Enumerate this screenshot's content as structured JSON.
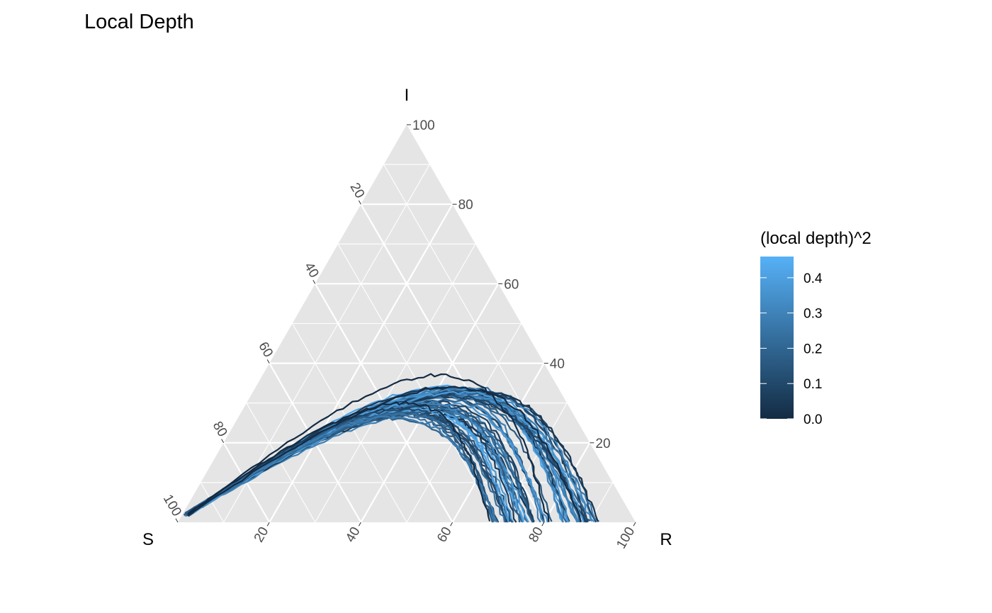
{
  "chart_data": {
    "type": "line",
    "subtype": "ternary",
    "title": "Local Depth",
    "vertices": {
      "top": "I",
      "left": "S",
      "right": "R"
    },
    "axes": {
      "I": {
        "ticks": [
          20,
          40,
          60,
          80,
          100
        ],
        "tick_labels": [
          "20",
          "40",
          "60",
          "80",
          "100"
        ],
        "side": "right"
      },
      "S": {
        "ticks": [
          20,
          40,
          60,
          80,
          100
        ],
        "tick_labels": [
          "20",
          "40",
          "60",
          "80",
          "100"
        ],
        "side": "left"
      },
      "R": {
        "ticks": [
          20,
          40,
          60,
          80,
          100
        ],
        "tick_labels": [
          "20",
          "40",
          "60",
          "80",
          "100"
        ],
        "side": "bottom"
      }
    },
    "grid": true,
    "grid_major_step": 20,
    "grid_minor_step": 10,
    "panel_background": "#e5e5e5",
    "grid_color": "#ffffff",
    "legend": {
      "title": "(local depth)^2",
      "ticks": [
        0.0,
        0.1,
        0.2,
        0.3,
        0.4
      ],
      "tick_labels": [
        "0.0",
        "0.1",
        "0.2",
        "0.3",
        "0.4"
      ],
      "range": [
        0.0,
        0.46
      ],
      "position": "right",
      "color_low": "#132b43",
      "color_high": "#56b1f7"
    },
    "curves": {
      "description_free": true,
      "groups": [
        {
          "peak_I": 32,
          "r_end": 80,
          "count": 6
        },
        {
          "peak_I": 33,
          "r_end": 86,
          "count": 14
        },
        {
          "peak_I": 32,
          "r_end": 90,
          "count": 12
        },
        {
          "peak_I": 29,
          "r_end": 76,
          "count": 14
        },
        {
          "peak_I": 28,
          "r_end": 72,
          "count": 10
        },
        {
          "peak_I": 27,
          "r_end": 70,
          "count": 6
        }
      ],
      "outliers": [
        {
          "peak_I": 37,
          "r_end": 81,
          "depth": 0.0
        },
        {
          "peak_I": 34,
          "r_end": 88,
          "depth": 0.0
        },
        {
          "peak_I": 30,
          "r_end": 68,
          "depth": 0.0
        }
      ],
      "start": {
        "S": 97,
        "I": 2,
        "R": 1
      }
    }
  }
}
